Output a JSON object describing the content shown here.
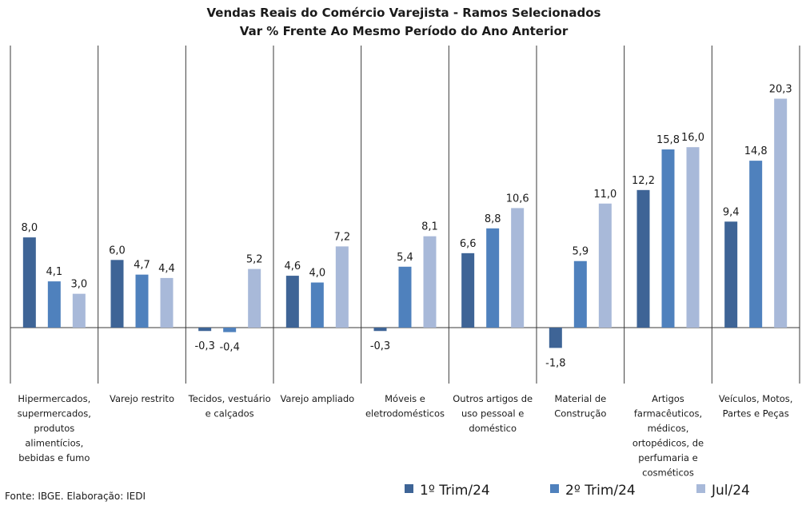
{
  "chart_data": {
    "type": "bar",
    "title": "Vendas Reais do Comércio Varejista - Ramos Selecionados",
    "subtitle": "Var % Frente Ao Mesmo Período do Ano Anterior",
    "categories": [
      [
        "Hipermercados,",
        "supermercados,",
        "produtos",
        "alimentícios,",
        "bebidas e fumo"
      ],
      [
        "Varejo restrito"
      ],
      [
        "Tecidos, vestuário",
        "e calçados"
      ],
      [
        "Varejo ampliado"
      ],
      [
        "Móveis e",
        "eletrodomésticos"
      ],
      [
        "Outros artigos de",
        "uso pessoal e",
        "doméstico"
      ],
      [
        "Material de",
        "Construção"
      ],
      [
        "Artigos",
        "farmacêuticos,",
        "médicos,",
        "ortopédicos, de",
        "perfumaria e",
        "cosméticos"
      ],
      [
        "Veículos, Motos,",
        "Partes e Peças"
      ]
    ],
    "series": [
      {
        "name": "1º Trim/24",
        "color": "#3e6496",
        "values": [
          8.0,
          6.0,
          -0.3,
          4.6,
          -0.3,
          6.6,
          -1.8,
          12.2,
          9.4
        ],
        "labels": [
          "8,0",
          "6,0",
          "-0,3",
          "4,6",
          "-0,3",
          "6,6",
          "-1,8",
          "12,2",
          "9,4"
        ]
      },
      {
        "name": "2º Trim/24",
        "color": "#4f81bd",
        "values": [
          4.1,
          4.7,
          -0.4,
          4.0,
          5.4,
          8.8,
          5.9,
          15.8,
          14.8
        ],
        "labels": [
          "4,1",
          "4,7",
          "-0,4",
          "4,0",
          "5,4",
          "8,8",
          "5,9",
          "15,8",
          "14,8"
        ]
      },
      {
        "name": "Jul/24",
        "color": "#a8b9d9",
        "values": [
          3.0,
          4.4,
          5.2,
          7.2,
          8.1,
          10.6,
          11.0,
          16.0,
          20.3
        ],
        "labels": [
          "3,0",
          "4,4",
          "5,2",
          "7,2",
          "8,1",
          "10,6",
          "11,0",
          "16,0",
          "20,3"
        ]
      }
    ],
    "ylim": [
      -4.8,
      24.8
    ],
    "grid": false,
    "legend_position": "bottom-right",
    "source": "Fonte: IBGE. Elaboração: IEDI"
  }
}
